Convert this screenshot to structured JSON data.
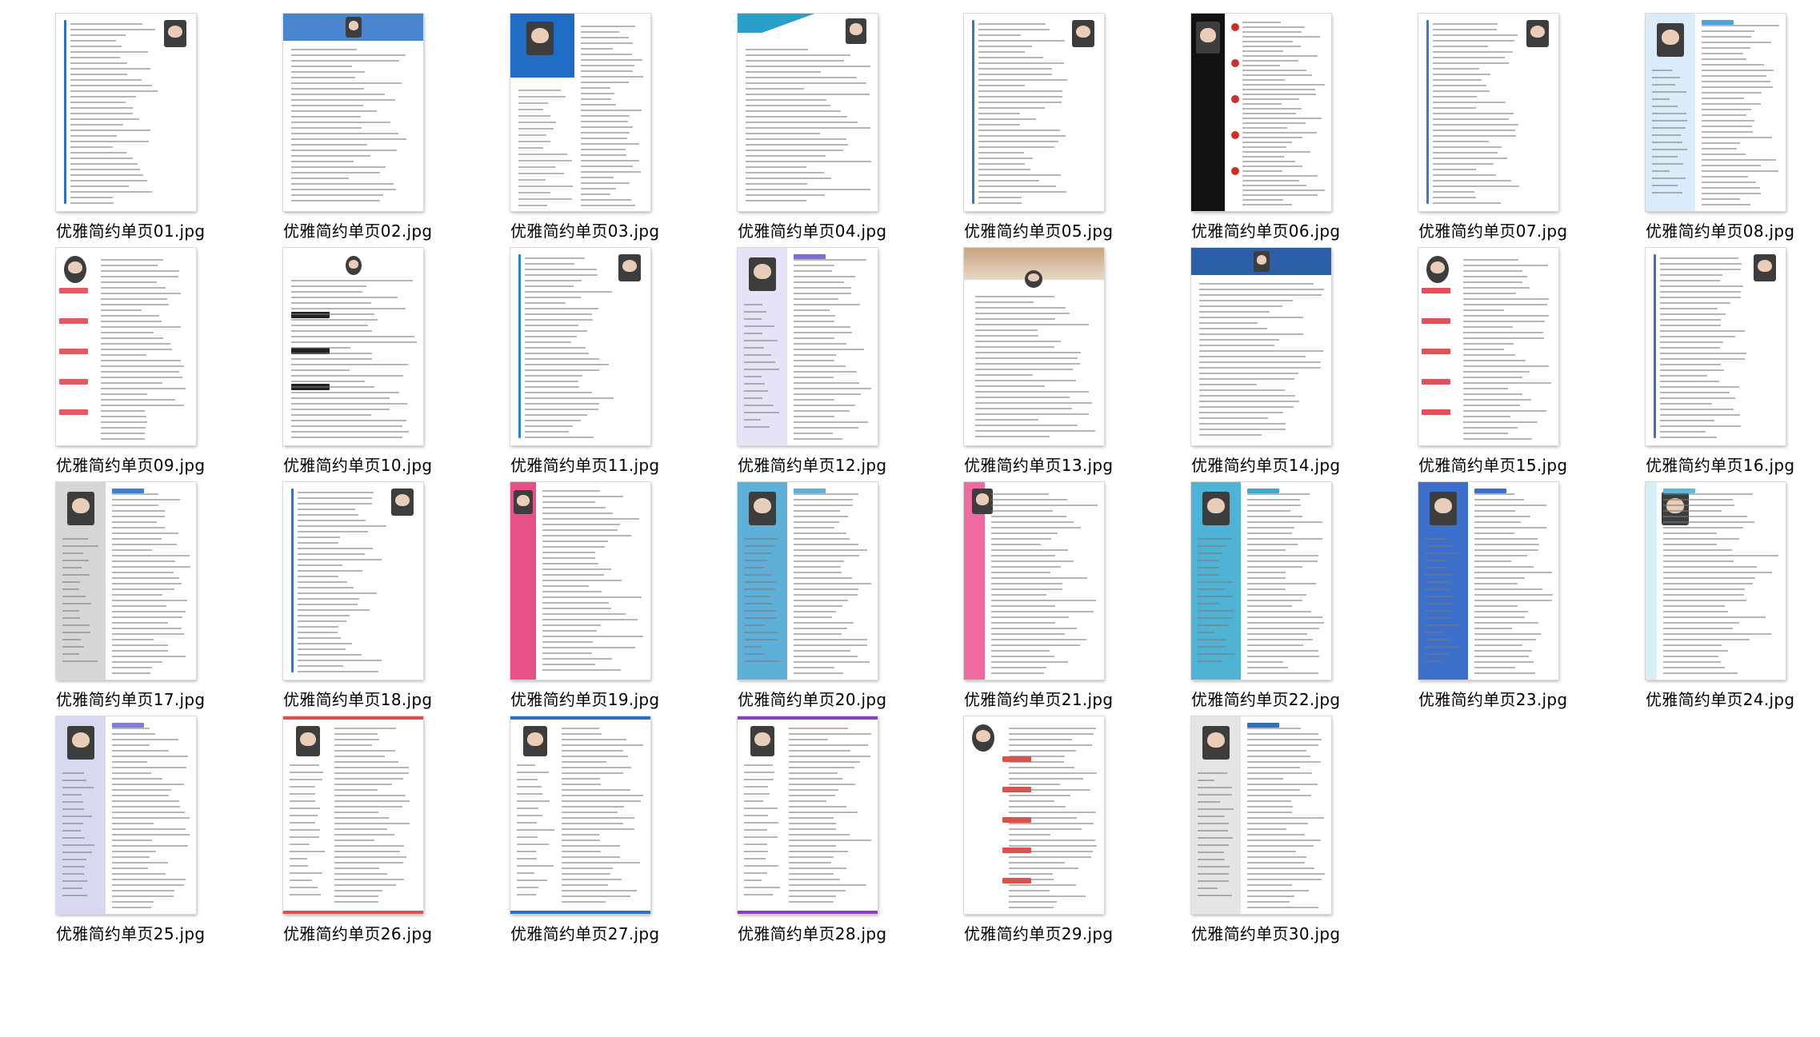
{
  "files": [
    {
      "name": "优雅简约单页01.jpg",
      "accent": "#2f6fc4",
      "style": "left-line"
    },
    {
      "name": "优雅简约单页02.jpg",
      "accent": "#4a86cf",
      "style": "top-bar"
    },
    {
      "name": "优雅简约单页03.jpg",
      "accent": "#1f6ec3",
      "style": "left-block"
    },
    {
      "name": "优雅简约单页04.jpg",
      "accent": "#2aa0c8",
      "style": "top-mountain"
    },
    {
      "name": "优雅简约单页05.jpg",
      "accent": "#2a7bc9",
      "style": "left-frame"
    },
    {
      "name": "优雅简约单页06.jpg",
      "accent": "#c9302c",
      "style": "black-side"
    },
    {
      "name": "优雅简约单页07.jpg",
      "accent": "#3a78c9",
      "style": "two-col"
    },
    {
      "name": "优雅简约单页08.jpg",
      "accent": "#4aa3d8",
      "style": "light-side"
    },
    {
      "name": "优雅简约单页09.jpg",
      "accent": "#e35a62",
      "style": "left-red"
    },
    {
      "name": "优雅简约单页10.jpg",
      "accent": "#222222",
      "style": "dark-sections"
    },
    {
      "name": "优雅简约单页11.jpg",
      "accent": "#2d7fd0",
      "style": "title-right"
    },
    {
      "name": "优雅简约单页12.jpg",
      "accent": "#7a6fd8",
      "style": "purple-side"
    },
    {
      "name": "优雅简约单页13.jpg",
      "accent": "#c48a5a",
      "style": "photo-bg"
    },
    {
      "name": "优雅简约单页14.jpg",
      "accent": "#2b5fa8",
      "style": "blue-header"
    },
    {
      "name": "优雅简约单页15.jpg",
      "accent": "#e0525a",
      "style": "left-red"
    },
    {
      "name": "优雅简约单页16.jpg",
      "accent": "#3a6fc4",
      "style": "title-tag"
    },
    {
      "name": "优雅简约单页17.jpg",
      "accent": "#3f7fd0",
      "style": "grey-side"
    },
    {
      "name": "优雅简约单页18.jpg",
      "accent": "#3a70c0",
      "style": "icon-col"
    },
    {
      "name": "优雅简约单页19.jpg",
      "accent": "#e8508a",
      "style": "pink-side"
    },
    {
      "name": "优雅简约单页20.jpg",
      "accent": "#5fb0d8",
      "style": "cyan-side"
    },
    {
      "name": "优雅简约单页21.jpg",
      "accent": "#ef6aa0",
      "style": "pink-band"
    },
    {
      "name": "优雅简约单页22.jpg",
      "accent": "#3fa9d0",
      "style": "teal-side"
    },
    {
      "name": "优雅简约单页23.jpg",
      "accent": "#3b6fc9",
      "style": "blue-side"
    },
    {
      "name": "优雅简约单页24.jpg",
      "accent": "#5eb9d6",
      "style": "teal-thin"
    },
    {
      "name": "优雅简约单页25.jpg",
      "accent": "#7d7fe0",
      "style": "violet-side"
    },
    {
      "name": "优雅简约单页26.jpg",
      "accent": "#e0504a",
      "style": "red-bottom"
    },
    {
      "name": "优雅简约单页27.jpg",
      "accent": "#2a6fc0",
      "style": "blue-bottom"
    },
    {
      "name": "优雅简约单页28.jpg",
      "accent": "#8a3fc0",
      "style": "purple-bottom"
    },
    {
      "name": "优雅简约单页29.jpg",
      "accent": "#e0504a",
      "style": "red-tags"
    },
    {
      "name": "优雅简约单页30.jpg",
      "accent": "#2a6fc0",
      "style": "grey-left"
    }
  ]
}
